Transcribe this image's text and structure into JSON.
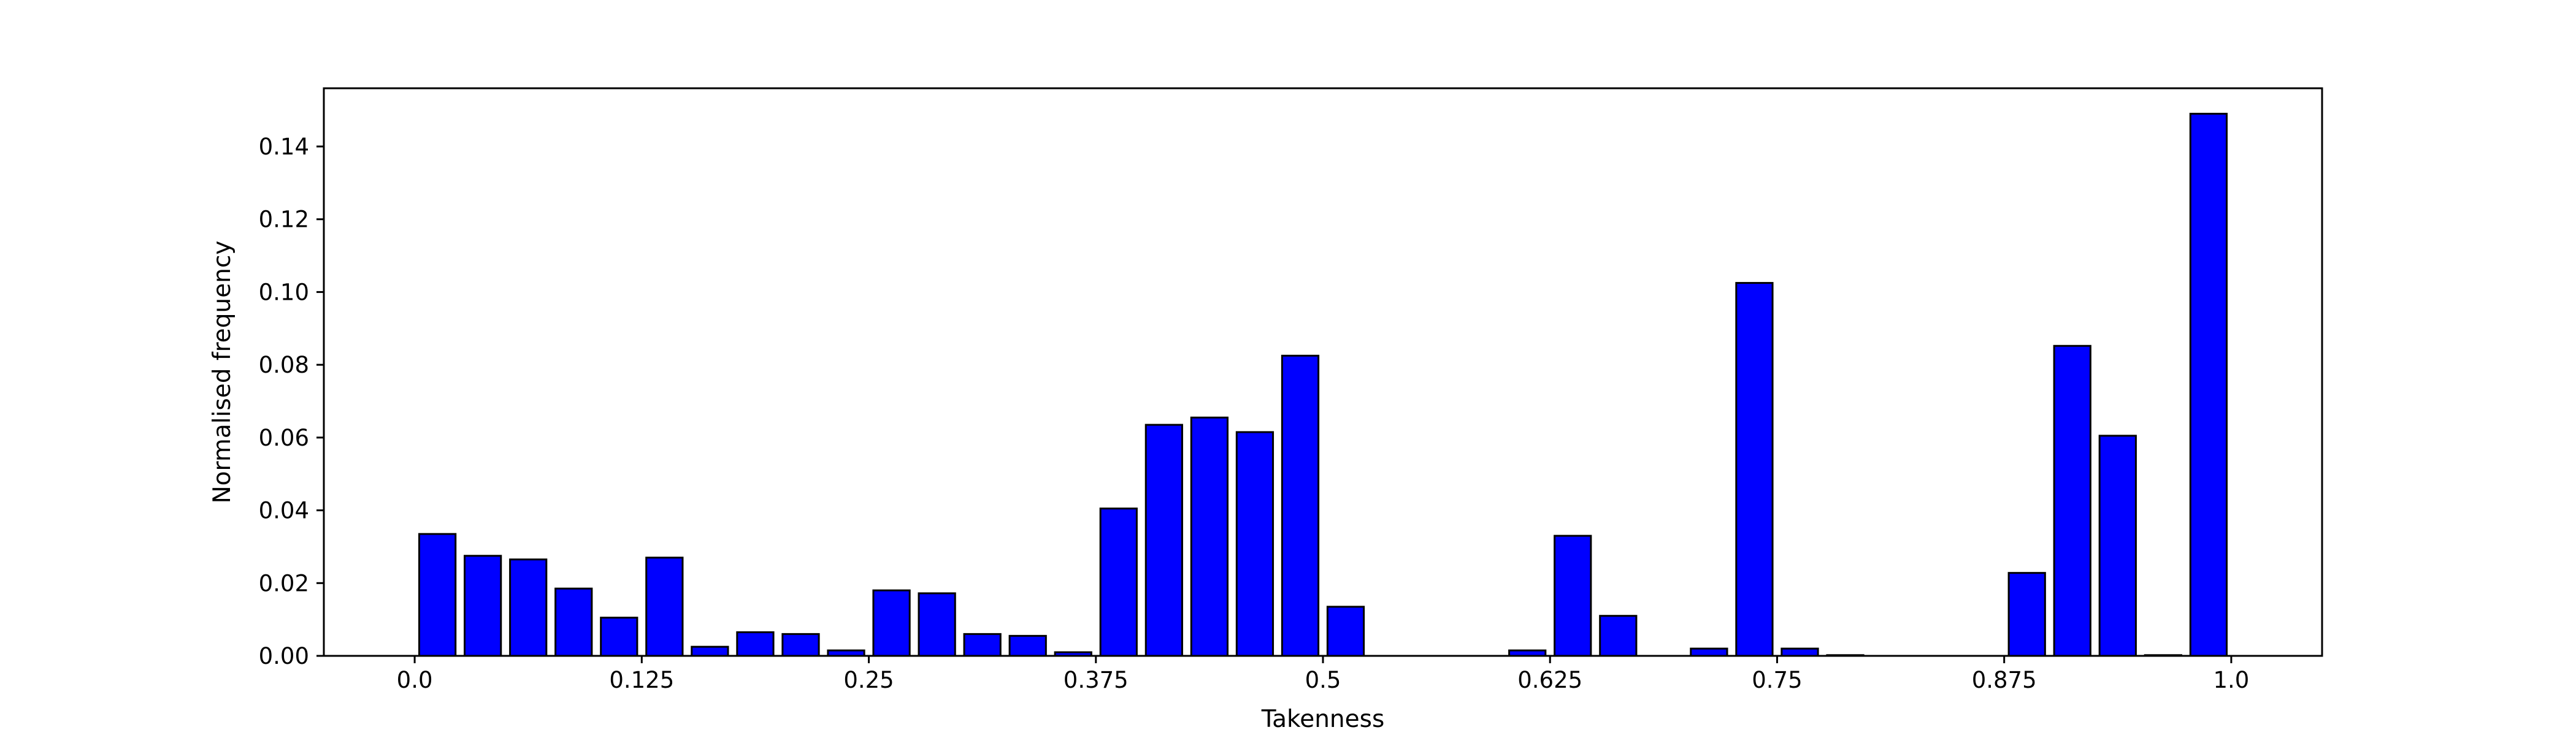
{
  "chart_data": {
    "type": "bar",
    "title": "",
    "xlabel": "Takenness",
    "ylabel": "Normalised frequency",
    "xlim": [
      -0.05,
      1.05
    ],
    "ylim": [
      0.0,
      0.156
    ],
    "xticks": [
      0.0,
      0.125,
      0.25,
      0.375,
      0.5,
      0.625,
      0.75,
      0.875,
      1.0
    ],
    "xtick_labels": [
      "0.0",
      "0.125",
      "0.25",
      "0.375",
      "0.5",
      "0.625",
      "0.75",
      "0.875",
      "1.0"
    ],
    "yticks": [
      0.0,
      0.02,
      0.04,
      0.06,
      0.08,
      0.1,
      0.12,
      0.14
    ],
    "ytick_labels": [
      "0.00",
      "0.02",
      "0.04",
      "0.06",
      "0.08",
      "0.10",
      "0.12",
      "0.14"
    ],
    "bar_width": 0.02,
    "grid": false,
    "bar_color": "#0000ff",
    "edge_color": "#000000",
    "x": [
      0.0125,
      0.0375,
      0.0625,
      0.0875,
      0.1125,
      0.1375,
      0.1625,
      0.1875,
      0.2125,
      0.2375,
      0.2625,
      0.2875,
      0.3125,
      0.3375,
      0.3625,
      0.3875,
      0.4125,
      0.4375,
      0.4625,
      0.4875,
      0.5125,
      0.5375,
      0.5625,
      0.5875,
      0.6125,
      0.6375,
      0.6625,
      0.6875,
      0.7125,
      0.7375,
      0.7625,
      0.7875,
      0.8125,
      0.8375,
      0.8625,
      0.8875,
      0.9125,
      0.9375,
      0.9625,
      0.9875
    ],
    "values": [
      0.0335,
      0.0275,
      0.0265,
      0.0185,
      0.0105,
      0.027,
      0.0025,
      0.0065,
      0.006,
      0.0015,
      0.018,
      0.0172,
      0.006,
      0.0055,
      0.001,
      0.0405,
      0.0635,
      0.0655,
      0.0615,
      0.0825,
      0.0135,
      0.0,
      0.0,
      0.0,
      0.0015,
      0.033,
      0.011,
      0.0,
      0.002,
      0.1025,
      0.002,
      0.0002,
      0.0,
      0.0,
      0.0,
      0.0228,
      0.0852,
      0.0605,
      0.0002,
      0.149
    ]
  }
}
